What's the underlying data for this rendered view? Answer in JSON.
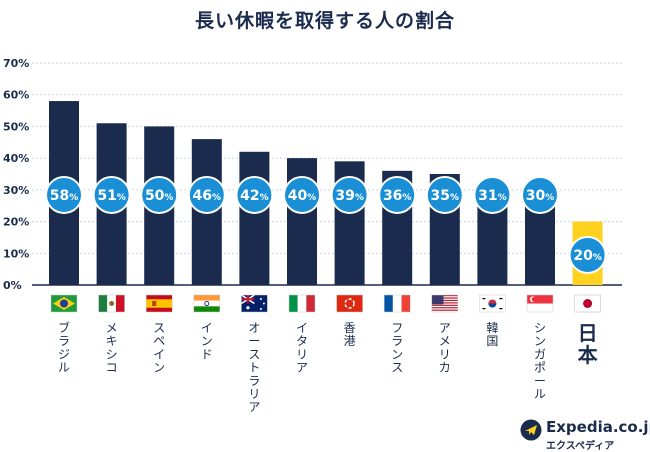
{
  "chart_data": {
    "type": "bar",
    "title": "長い休暇を取得する人の割合",
    "categories": [
      "ブラジル",
      "メキシコ",
      "スペイン",
      "インド",
      "オーストラリア",
      "イタリア",
      "香港",
      "フランス",
      "アメリカ",
      "韓国",
      "シンガポール",
      "日本"
    ],
    "values": [
      58,
      51,
      50,
      46,
      42,
      40,
      39,
      36,
      35,
      31,
      30,
      20
    ],
    "data_labels": [
      "58%",
      "51%",
      "50%",
      "46%",
      "42%",
      "40%",
      "39%",
      "36%",
      "35%",
      "31%",
      "30%",
      "20%"
    ],
    "yticks": [
      "0%",
      "10%",
      "20%",
      "30%",
      "40%",
      "50%",
      "60%",
      "70%"
    ],
    "ylim": [
      0,
      70
    ],
    "xlabel": "",
    "ylabel": "",
    "grid": true,
    "highlight_category": "日本",
    "colors": {
      "bar": "#1b2b4d",
      "highlight_bar": "#ffd21f",
      "bubble": "#1a8fd6",
      "bubble_border": "#ffffff",
      "grid": "#c9d4e6",
      "text": "#1b2b4d"
    }
  },
  "flags": [
    "brazil-flag-icon",
    "mexico-flag-icon",
    "spain-flag-icon",
    "india-flag-icon",
    "australia-flag-icon",
    "italy-flag-icon",
    "hongkong-flag-icon",
    "france-flag-icon",
    "usa-flag-icon",
    "korea-flag-icon",
    "singapore-flag-icon",
    "japan-flag-icon"
  ],
  "brand": {
    "name": "Expedia.co.jp",
    "sub": "エクスペディア"
  }
}
